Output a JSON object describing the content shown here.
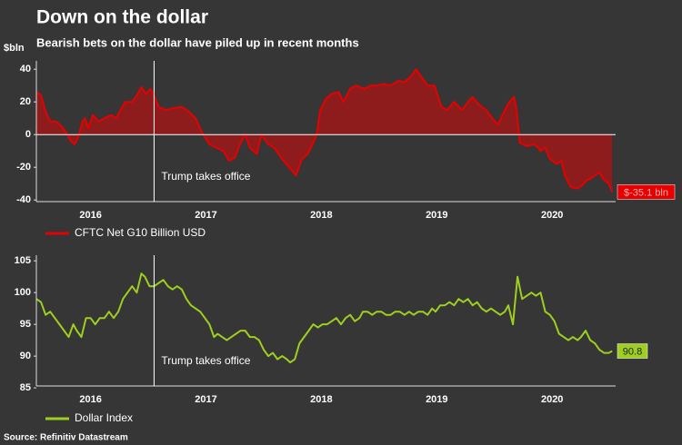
{
  "title": "Down on the dollar",
  "subtitle": "Bearish bets on the dollar have piled up in recent months",
  "source": "Source: Refinitiv Datastream",
  "chart_data": [
    {
      "type": "area",
      "y_label": "$bln",
      "x": [
        2016.03,
        2016.07,
        2016.11,
        2016.15,
        2016.2,
        2016.25,
        2016.29,
        2016.33,
        2016.36,
        2016.39,
        2016.43,
        2016.45,
        2016.48,
        2016.52,
        2016.57,
        2016.62,
        2016.68,
        2016.72,
        2016.76,
        2016.8,
        2016.86,
        2016.9,
        2016.94,
        2016.98,
        2017.02,
        2017.06,
        2017.09,
        2017.15,
        2017.21,
        2017.29,
        2017.35,
        2017.41,
        2017.46,
        2017.53,
        2017.59,
        2017.65,
        2017.7,
        2017.75,
        2017.8,
        2017.84,
        2017.88,
        2017.94,
        2017.98,
        2018.04,
        2018.09,
        2018.16,
        2018.22,
        2018.28,
        2018.33,
        2018.38,
        2018.43,
        2018.46,
        2018.49,
        2018.54,
        2018.59,
        2018.65,
        2018.69,
        2018.75,
        2018.8,
        2018.87,
        2018.93,
        2018.98,
        2019.04,
        2019.1,
        2019.17,
        2019.22,
        2019.28,
        2019.32,
        2019.36,
        2019.42,
        2019.48,
        2019.54,
        2019.59,
        2019.65,
        2019.72,
        2019.77,
        2019.81,
        2019.87,
        2019.93,
        2019.98,
        2020.03,
        2020.09,
        2020.13,
        2020.17,
        2020.19,
        2020.22,
        2020.28,
        2020.35,
        2020.4,
        2020.44,
        2020.48,
        2020.54,
        2020.58,
        2020.61,
        2020.66,
        2020.72,
        2020.76,
        2020.8,
        2020.83,
        2020.87,
        2020.91,
        2020.94,
        2020.99,
        2021.02
      ],
      "series": [
        {
          "name": "CFTC Net G10 Billion USD",
          "color": "#e60000",
          "fill": "#8e1c1c",
          "end_label": "$-35.1 bln",
          "values": [
            26,
            24,
            14,
            8,
            8,
            5,
            1,
            -4,
            -6,
            -2,
            8,
            10,
            4,
            12,
            8,
            10,
            12,
            10,
            15,
            20,
            20,
            24,
            29,
            25,
            28,
            22,
            17,
            15,
            16,
            17,
            14,
            10,
            2,
            -6,
            -8,
            -10,
            -16,
            -14,
            -5,
            0,
            -8,
            -12,
            0,
            -6,
            -8,
            -15,
            -20,
            -25,
            -15,
            -12,
            -5,
            0,
            15,
            22,
            25,
            26,
            20,
            28,
            30,
            28,
            30,
            30,
            31,
            30,
            33,
            32,
            36,
            40,
            36,
            30,
            30,
            17,
            15,
            20,
            15,
            20,
            23,
            18,
            15,
            10,
            6,
            15,
            20,
            23,
            16,
            -5,
            -7,
            -6,
            -10,
            -8,
            -15,
            -18,
            -16,
            -25,
            -32,
            -33,
            -31,
            -28,
            -27,
            -25,
            -23,
            -27,
            -30,
            -35.1
          ]
        }
      ],
      "xlim": [
        2016.03,
        2021.05
      ],
      "xticks": [
        {
          "value": 2016.5,
          "label": "2016"
        },
        {
          "value": 2017.5,
          "label": "2017"
        },
        {
          "value": 2018.5,
          "label": "2018"
        },
        {
          "value": 2019.5,
          "label": "2019"
        },
        {
          "value": 2020.5,
          "label": "2020"
        }
      ],
      "ylim": [
        -41,
        44
      ],
      "yticks": [
        -40,
        -20,
        0,
        20,
        40
      ],
      "annotation": {
        "text": "Trump takes office",
        "x": 2017.05
      }
    },
    {
      "type": "line",
      "x": [
        2016.03,
        2016.07,
        2016.11,
        2016.15,
        2016.19,
        2016.23,
        2016.27,
        2016.31,
        2016.35,
        2016.38,
        2016.42,
        2016.46,
        2016.5,
        2016.54,
        2016.58,
        2016.62,
        2016.66,
        2016.7,
        2016.74,
        2016.78,
        2016.82,
        2016.86,
        2016.9,
        2016.94,
        2016.97,
        2017.01,
        2017.05,
        2017.09,
        2017.13,
        2017.17,
        2017.21,
        2017.25,
        2017.29,
        2017.33,
        2017.37,
        2017.41,
        2017.45,
        2017.49,
        2017.53,
        2017.57,
        2017.6,
        2017.64,
        2017.68,
        2017.72,
        2017.76,
        2017.8,
        2017.84,
        2017.88,
        2017.92,
        2017.96,
        2018.0,
        2018.04,
        2018.08,
        2018.12,
        2018.16,
        2018.2,
        2018.23,
        2018.27,
        2018.31,
        2018.35,
        2018.39,
        2018.43,
        2018.47,
        2018.51,
        2018.55,
        2018.59,
        2018.63,
        2018.67,
        2018.71,
        2018.75,
        2018.79,
        2018.83,
        2018.86,
        2018.9,
        2018.94,
        2018.98,
        2019.02,
        2019.06,
        2019.1,
        2019.14,
        2019.18,
        2019.22,
        2019.26,
        2019.3,
        2019.34,
        2019.38,
        2019.42,
        2019.46,
        2019.49,
        2019.53,
        2019.57,
        2019.61,
        2019.65,
        2019.69,
        2019.73,
        2019.77,
        2019.81,
        2019.85,
        2019.89,
        2019.93,
        2019.97,
        2020.01,
        2020.05,
        2020.09,
        2020.12,
        2020.16,
        2020.2,
        2020.24,
        2020.28,
        2020.32,
        2020.36,
        2020.4,
        2020.44,
        2020.48,
        2020.52,
        2020.56,
        2020.6,
        2020.64,
        2020.68,
        2020.72,
        2020.75,
        2020.79,
        2020.83,
        2020.87,
        2020.91,
        2020.95,
        2020.99,
        2021.02
      ],
      "series": [
        {
          "name": "Dollar Index",
          "color": "#9fcf1e",
          "end_label": "90.8",
          "values": [
            99,
            98.5,
            96.5,
            97,
            96,
            95,
            94,
            93,
            95,
            94,
            93,
            96,
            96,
            95,
            96,
            96,
            97,
            96,
            97,
            99,
            100,
            101,
            100,
            103,
            102.5,
            101,
            101,
            101.5,
            102,
            101,
            100.5,
            101,
            100.5,
            99,
            98,
            97.5,
            97,
            96,
            95,
            93,
            93.5,
            93,
            92.5,
            93,
            93.5,
            94,
            94,
            93,
            93,
            92.5,
            91,
            90,
            90.5,
            89.5,
            90,
            89.5,
            89,
            89.5,
            92,
            93,
            94,
            95,
            94.5,
            95,
            95,
            95.5,
            96,
            95,
            96,
            96.5,
            95.5,
            96,
            97,
            97,
            96.5,
            97,
            97,
            96.5,
            96.5,
            97,
            97,
            96.5,
            97,
            96.5,
            97,
            97,
            96.5,
            97.5,
            97,
            98,
            98,
            98.5,
            98,
            99,
            98.5,
            99,
            98,
            98.5,
            97.5,
            97,
            97.5,
            97,
            96.5,
            97,
            98,
            95,
            102.5,
            99,
            99.5,
            100,
            99.5,
            100,
            97,
            96.5,
            95.5,
            93.5,
            93,
            92.5,
            93,
            92.5,
            93,
            94,
            92.5,
            92,
            91,
            90.5,
            90.5,
            90.8
          ]
        }
      ],
      "xlim": [
        2016.03,
        2021.05
      ],
      "xticks": [
        {
          "value": 2016.5,
          "label": "2016"
        },
        {
          "value": 2017.5,
          "label": "2017"
        },
        {
          "value": 2018.5,
          "label": "2018"
        },
        {
          "value": 2019.5,
          "label": "2019"
        },
        {
          "value": 2020.5,
          "label": "2020"
        }
      ],
      "ylim": [
        85.3,
        105.6
      ],
      "yticks": [
        85,
        90,
        95,
        100,
        105
      ],
      "annotation": {
        "text": "Trump takes office",
        "x": 2017.05
      }
    }
  ]
}
